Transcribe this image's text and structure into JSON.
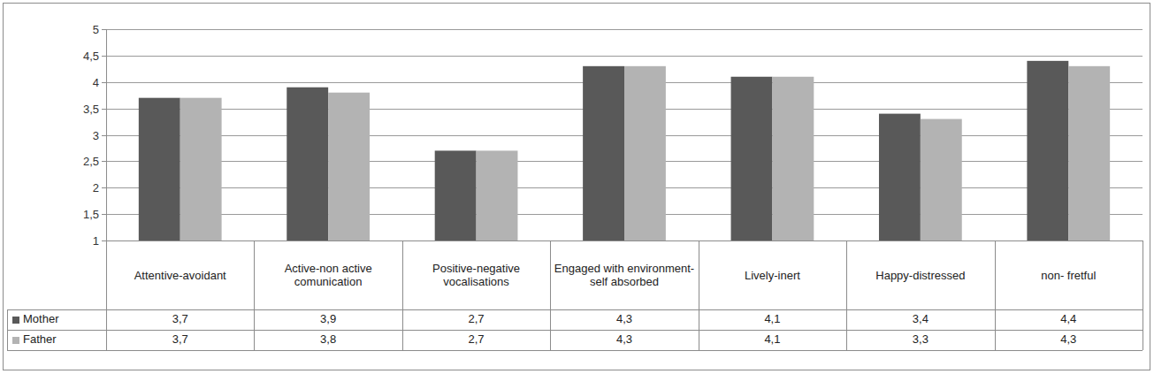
{
  "chart_data": {
    "type": "bar",
    "categories": [
      "Attentive-avoidant",
      "Active-non active comunication",
      "Positive-negative vocalisations",
      "Engaged with environment-self absorbed",
      "Lively-inert",
      "Happy-distressed",
      "non- fretful"
    ],
    "series": [
      {
        "name": "Mother",
        "color": "#595959",
        "values": [
          3.7,
          3.9,
          2.7,
          4.3,
          4.1,
          3.4,
          4.4
        ],
        "value_labels": [
          "3,7",
          "3,9",
          "2,7",
          "4,3",
          "4,1",
          "3,4",
          "4,4"
        ]
      },
      {
        "name": "Father",
        "color": "#b3b3b3",
        "values": [
          3.7,
          3.8,
          2.7,
          4.3,
          4.1,
          3.3,
          4.3
        ],
        "value_labels": [
          "3,7",
          "3,8",
          "2,7",
          "4,3",
          "4,1",
          "3,3",
          "4,3"
        ]
      }
    ],
    "ylim": [
      1,
      5
    ],
    "yticks": [
      1,
      {
        "value": 1.5,
        "label": "1,5"
      },
      2,
      {
        "value": 2.5,
        "label": "2,5"
      },
      3,
      {
        "value": 3.5,
        "label": "3,5"
      },
      4,
      {
        "value": 4.5,
        "label": "4,5"
      },
      5
    ],
    "grid": true,
    "data_labels": true,
    "legend": "bottom"
  }
}
